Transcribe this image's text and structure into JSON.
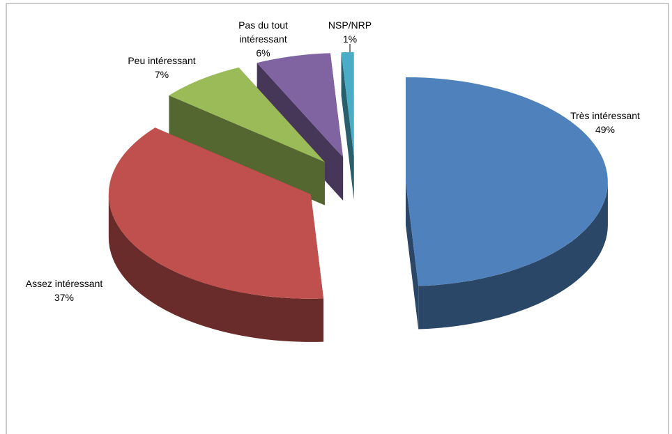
{
  "chart_data": {
    "type": "pie3d",
    "categories": [
      "Très intéressant",
      "Assez intéressant",
      "Peu intéressant",
      "Pas du tout intéressant",
      "NSP/NRP"
    ],
    "values": [
      49,
      37,
      7,
      6,
      1
    ],
    "value_labels": [
      "49%",
      "37%",
      "7%",
      "6%",
      "1%"
    ],
    "colors": [
      "#4f81bd",
      "#c0504d",
      "#9bbb59",
      "#8064a2",
      "#4bacc6"
    ]
  }
}
